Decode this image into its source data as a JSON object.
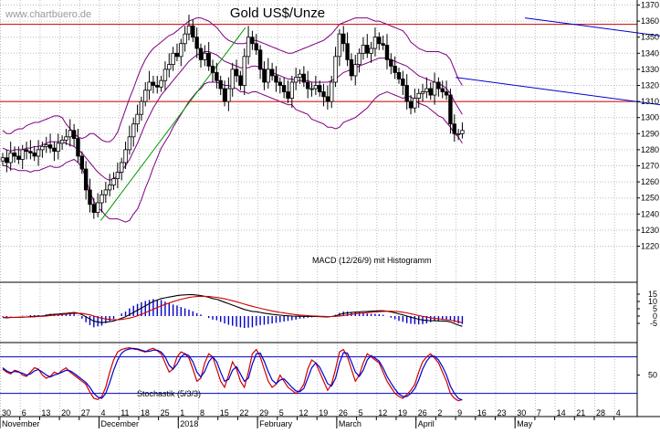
{
  "watermark": "www.chartbuero.de",
  "colors": {
    "candle": "#000000",
    "bollinger": "#800080",
    "support_resistance": "#cc0000",
    "channel": "#0000cc",
    "uptrend": "#009900",
    "macd": "#000000",
    "signal": "#cc0000",
    "histogram": "#0000cc",
    "stoch_k": "#cc0000",
    "stoch_d": "#0000cc",
    "stoch_levels": "#0000cc"
  },
  "x_axis": {
    "ticks": [
      "30",
      "6",
      "13",
      "20",
      "27",
      "4",
      "11",
      "18",
      "25",
      "1",
      "8",
      "15",
      "22",
      "29",
      "5",
      "12",
      "19",
      "26",
      "5",
      "12",
      "19",
      "26",
      "2",
      "9",
      "16",
      "23",
      "30",
      "7",
      "14",
      "21",
      "28",
      "4"
    ],
    "months": [
      {
        "label": "November",
        "i": 0
      },
      {
        "label": "December",
        "i": 5
      },
      {
        "label": "2018",
        "i": 9
      },
      {
        "label": "February",
        "i": 13
      },
      {
        "label": "March",
        "i": 17
      },
      {
        "label": "April",
        "i": 21
      },
      {
        "label": "May",
        "i": 26
      }
    ]
  },
  "price_axis": [
    "1370",
    "1360",
    "1350",
    "1340",
    "1330",
    "1320",
    "1310",
    "1300",
    "1290",
    "1280",
    "1270",
    "1260",
    "1250",
    "1240",
    "1230",
    "1220"
  ],
  "macd_axis": [
    "15",
    "10",
    "5",
    "0",
    "-5"
  ],
  "stoch_axis": [
    "50"
  ],
  "chart_data": [
    {
      "type": "candlestick",
      "title": "Gold US$/Unze",
      "x_unit": "week index (0 = 30 Oct 2017)",
      "ylim": [
        1215,
        1375
      ],
      "horizontal_lines": [
        1358,
        1310
      ],
      "channel": {
        "upper": [
          [
            26.5,
            1362
          ],
          [
            43,
            1335
          ]
        ],
        "lower": [
          [
            23,
            1325
          ],
          [
            43,
            1292
          ]
        ]
      },
      "uptrend_line": [
        [
          11.7,
          1236
        ],
        [
          28.5,
          1356
        ]
      ],
      "close": [
        1275,
        1272,
        1278,
        1276,
        1274,
        1280,
        1279,
        1278,
        1276,
        1280,
        1282,
        1283,
        1281,
        1279,
        1284,
        1286,
        1288,
        1292,
        1287,
        1276,
        1268,
        1255,
        1246,
        1241,
        1247,
        1252,
        1255,
        1258,
        1262,
        1266,
        1272,
        1280,
        1288,
        1296,
        1302,
        1310,
        1317,
        1322,
        1320,
        1319,
        1323,
        1330,
        1333,
        1340,
        1338,
        1346,
        1352,
        1357,
        1350,
        1343,
        1336,
        1340,
        1332,
        1328,
        1323,
        1318,
        1310,
        1318,
        1330,
        1326,
        1320,
        1338,
        1350,
        1346,
        1342,
        1330,
        1322,
        1330,
        1326,
        1322,
        1320,
        1316,
        1312,
        1322,
        1325,
        1327,
        1322,
        1318,
        1318,
        1320,
        1316,
        1313,
        1310,
        1322,
        1338,
        1352,
        1346,
        1336,
        1326,
        1333,
        1340,
        1345,
        1340,
        1343,
        1350,
        1346,
        1345,
        1336,
        1332,
        1328,
        1324,
        1320,
        1310,
        1306,
        1312,
        1315,
        1316,
        1318,
        1314,
        1322,
        1318,
        1316,
        1314,
        1296,
        1290,
        1290,
        1292
      ],
      "bollinger_upper": [
        1292,
        1290,
        1290,
        1292,
        1293,
        1293,
        1295,
        1296,
        1297,
        1297,
        1298,
        1299,
        1300,
        1301,
        1301,
        1300,
        1296,
        1293,
        1290,
        1288,
        1287,
        1288,
        1290,
        1290,
        1288,
        1286,
        1285,
        1285,
        1287,
        1291,
        1298,
        1305,
        1312,
        1318,
        1325,
        1331,
        1336,
        1340,
        1343,
        1345,
        1347,
        1349,
        1351,
        1352,
        1354,
        1356,
        1358,
        1360,
        1361,
        1362,
        1362,
        1361,
        1360,
        1358,
        1356,
        1353,
        1350,
        1348,
        1347,
        1346,
        1346,
        1346,
        1347,
        1348,
        1348,
        1347,
        1346,
        1345,
        1344,
        1343,
        1342,
        1341,
        1340,
        1340,
        1341,
        1342,
        1343,
        1344,
        1345,
        1346,
        1347,
        1348,
        1350,
        1352,
        1355,
        1358,
        1359,
        1360,
        1361,
        1362,
        1362,
        1362,
        1362,
        1361,
        1360,
        1360,
        1359,
        1358,
        1357,
        1356,
        1355,
        1354,
        1351,
        1347,
        1345,
        1343,
        1342,
        1341,
        1341,
        1341,
        1341,
        1340,
        1339,
        1336,
        1330,
        1324,
        1320
      ],
      "bollinger_middle": [
        1281,
        1280,
        1279,
        1280,
        1280,
        1280,
        1281,
        1281,
        1282,
        1282,
        1283,
        1284,
        1285,
        1285,
        1285,
        1285,
        1284,
        1283,
        1282,
        1280,
        1278,
        1275,
        1272,
        1269,
        1266,
        1264,
        1262,
        1261,
        1262,
        1264,
        1267,
        1270,
        1274,
        1279,
        1284,
        1290,
        1296,
        1301,
        1306,
        1310,
        1314,
        1317,
        1320,
        1323,
        1326,
        1329,
        1332,
        1335,
        1337,
        1339,
        1340,
        1341,
        1341,
        1340,
        1339,
        1337,
        1335,
        1334,
        1333,
        1332,
        1331,
        1331,
        1331,
        1332,
        1332,
        1331,
        1330,
        1329,
        1328,
        1327,
        1326,
        1325,
        1324,
        1324,
        1323,
        1323,
        1323,
        1323,
        1322,
        1322,
        1322,
        1322,
        1322,
        1323,
        1324,
        1326,
        1328,
        1329,
        1330,
        1331,
        1332,
        1333,
        1334,
        1335,
        1336,
        1337,
        1337,
        1337,
        1336,
        1335,
        1334,
        1333,
        1332,
        1330,
        1328,
        1326,
        1325,
        1324,
        1323,
        1322,
        1321,
        1320,
        1318,
        1315,
        1310,
        1306,
        1302
      ],
      "bollinger_lower": [
        1270,
        1270,
        1268,
        1268,
        1267,
        1267,
        1267,
        1266,
        1267,
        1267,
        1268,
        1269,
        1270,
        1269,
        1269,
        1270,
        1272,
        1273,
        1274,
        1272,
        1269,
        1262,
        1254,
        1248,
        1244,
        1242,
        1239,
        1237,
        1237,
        1237,
        1236,
        1235,
        1236,
        1240,
        1243,
        1249,
        1256,
        1262,
        1269,
        1275,
        1281,
        1285,
        1289,
        1294,
        1298,
        1302,
        1306,
        1310,
        1313,
        1316,
        1318,
        1321,
        1322,
        1322,
        1322,
        1321,
        1320,
        1320,
        1319,
        1318,
        1316,
        1316,
        1315,
        1316,
        1316,
        1315,
        1314,
        1313,
        1312,
        1311,
        1310,
        1309,
        1308,
        1308,
        1305,
        1304,
        1303,
        1302,
        1299,
        1298,
        1297,
        1296,
        1294,
        1294,
        1293,
        1294,
        1297,
        1298,
        1299,
        1300,
        1302,
        1304,
        1306,
        1309,
        1312,
        1314,
        1315,
        1316,
        1315,
        1314,
        1313,
        1312,
        1313,
        1313,
        1311,
        1309,
        1308,
        1307,
        1305,
        1303,
        1301,
        1300,
        1297,
        1294,
        1290,
        1288,
        1284
      ]
    },
    {
      "type": "line",
      "title": "MACD (12/26/9) mit Histogramm",
      "ylim": [
        -8,
        18
      ],
      "series": [
        {
          "values": [
            -1,
            -1.2,
            -1,
            -0.9,
            -0.8,
            -0.7,
            -0.6,
            -0.3,
            -0.2,
            0,
            0,
            0.5,
            1,
            1.2,
            1.4,
            1.7,
            1.8,
            2.2,
            2.5,
            2,
            1,
            -0.5,
            -2,
            -3.5,
            -4,
            -4.5,
            -4.2,
            -3.8,
            -3.4,
            -2.5,
            -1.5,
            -0.5,
            1,
            2.5,
            4,
            5.5,
            7,
            8.5,
            10,
            11,
            12,
            12.5,
            13,
            13.5,
            14,
            14.3,
            14.5,
            14.7,
            14.6,
            14.3,
            14,
            13.5,
            12.8,
            12,
            11.5,
            10.5,
            9.5,
            8.5,
            7.5,
            6.5,
            5.5,
            4.5,
            3.8,
            3.2,
            3,
            2.5,
            2,
            1.6,
            1.2,
            0.9,
            0.6,
            0.4,
            0.2,
            0,
            -0.1,
            -0.1,
            -0.2,
            -0.2,
            -0.3,
            -0.3,
            -0.4,
            -0.5,
            -0.6,
            -0.3,
            0.2,
            1,
            1.8,
            2.2,
            2.5,
            2.7,
            2.9,
            3.1,
            3.2,
            3.3,
            3.5,
            3.6,
            3.6,
            3.3,
            2.8,
            2.2,
            1.5,
            0.8,
            0,
            -0.8,
            -1.5,
            -2.2,
            -2.7,
            -3,
            -3.1,
            -3.2,
            -3.3,
            -3.4,
            -3.5,
            -4,
            -5.2,
            -6.2,
            -7
          ]
        },
        {
          "values": [
            -0.8,
            -0.9,
            -0.9,
            -0.9,
            -0.8,
            -0.8,
            -0.7,
            -0.6,
            -0.5,
            -0.3,
            -0.2,
            0,
            0.3,
            0.6,
            0.9,
            1.1,
            1.3,
            1.6,
            1.8,
            1.9,
            1.8,
            1.4,
            0.8,
            0,
            -0.8,
            -1.5,
            -2,
            -2.3,
            -2.5,
            -2.5,
            -2.3,
            -1.9,
            -1.4,
            -0.7,
            0.2,
            1.2,
            2.3,
            3.5,
            4.7,
            5.9,
            7,
            8,
            9,
            9.9,
            10.7,
            11.5,
            12.1,
            12.7,
            13.1,
            13.4,
            13.5,
            13.5,
            13.4,
            13.1,
            12.8,
            12.3,
            11.8,
            11.2,
            10.5,
            9.8,
            9,
            8.2,
            7.4,
            6.7,
            6,
            5.3,
            4.7,
            4.1,
            3.5,
            3,
            2.5,
            2.1,
            1.7,
            1.3,
            1,
            0.7,
            0.5,
            0.3,
            0.1,
            0,
            -0.1,
            -0.2,
            -0.3,
            -0.3,
            -0.2,
            0,
            0.4,
            0.8,
            1.2,
            1.5,
            1.8,
            2.1,
            2.4,
            2.6,
            2.8,
            3,
            3.2,
            3.3,
            3.3,
            3.2,
            3,
            2.6,
            2.2,
            1.6,
            1,
            0.4,
            -0.2,
            -0.7,
            -1.2,
            -1.6,
            -1.9,
            -2.2,
            -2.5,
            -2.8,
            -3.3,
            -3.9,
            -4.5
          ]
        }
      ]
    },
    {
      "type": "line",
      "title": "Stochastik (5/3/3)",
      "ylim": [
        0,
        100
      ],
      "levels": [
        80,
        20
      ],
      "series": [
        {
          "values": [
            60,
            55,
            52,
            58,
            56,
            50,
            48,
            55,
            62,
            60,
            50,
            45,
            48,
            55,
            52,
            58,
            62,
            55,
            50,
            45,
            40,
            35,
            22,
            12,
            10,
            15,
            30,
            55,
            75,
            88,
            92,
            94,
            95,
            93,
            92,
            90,
            88,
            92,
            94,
            90,
            85,
            70,
            55,
            60,
            80,
            88,
            85,
            78,
            60,
            40,
            45,
            70,
            85,
            80,
            60,
            40,
            30,
            50,
            72,
            60,
            40,
            30,
            55,
            85,
            92,
            80,
            60,
            40,
            30,
            35,
            50,
            40,
            30,
            25,
            20,
            25,
            35,
            60,
            75,
            70,
            55,
            40,
            25,
            35,
            60,
            88,
            92,
            80,
            60,
            40,
            50,
            70,
            85,
            80,
            75,
            70,
            55,
            40,
            30,
            20,
            15,
            12,
            18,
            25,
            35,
            55,
            72,
            80,
            85,
            78,
            70,
            55,
            40,
            20,
            12,
            8,
            10
          ]
        },
        {
          "values": [
            62,
            57,
            54,
            56,
            55,
            53,
            50,
            52,
            57,
            59,
            55,
            50,
            47,
            50,
            52,
            55,
            58,
            57,
            53,
            48,
            43,
            38,
            30,
            20,
            14,
            12,
            20,
            38,
            58,
            75,
            86,
            91,
            93,
            94,
            93,
            91,
            89,
            89,
            91,
            91,
            88,
            80,
            66,
            60,
            68,
            80,
            85,
            82,
            72,
            55,
            47,
            56,
            72,
            80,
            72,
            55,
            40,
            43,
            58,
            64,
            52,
            40,
            45,
            68,
            85,
            86,
            73,
            56,
            42,
            36,
            42,
            44,
            37,
            30,
            24,
            23,
            28,
            45,
            62,
            70,
            63,
            50,
            36,
            32,
            45,
            70,
            87,
            86,
            72,
            55,
            48,
            58,
            75,
            82,
            78,
            73,
            62,
            48,
            37,
            27,
            19,
            15,
            15,
            20,
            28,
            42,
            60,
            73,
            81,
            81,
            75,
            64,
            50,
            32,
            20,
            12,
            9
          ]
        }
      ]
    }
  ]
}
